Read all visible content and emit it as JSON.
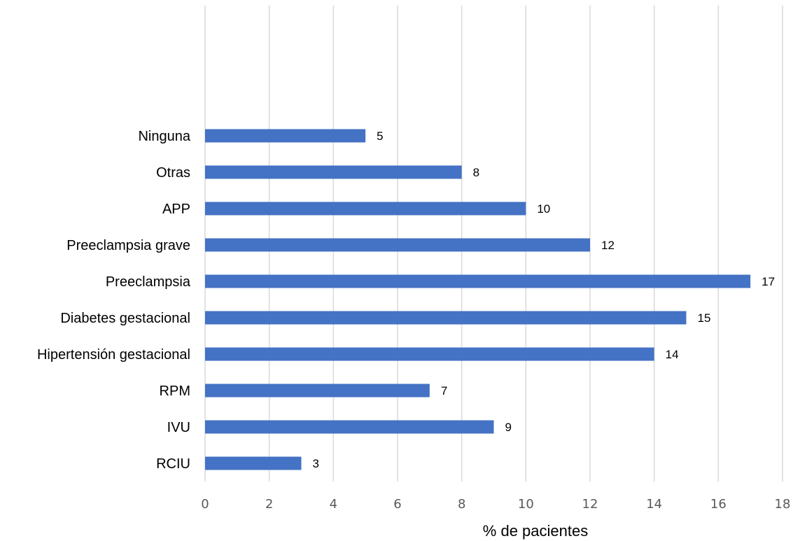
{
  "chart_data": {
    "type": "bar",
    "orientation": "horizontal",
    "categories": [
      "RCIU",
      "IVU",
      "RPM",
      "Hipertensión gestacional",
      "Diabetes gestacional",
      "Preeclampsia",
      "Preeclampsia grave",
      "APP",
      "Otras",
      "Ninguna"
    ],
    "values": [
      3,
      9,
      7,
      14,
      15,
      17,
      12,
      10,
      8,
      5
    ],
    "xlabel": "% de pacientes",
    "ylabel": "",
    "xlim": [
      0,
      18
    ],
    "xticks": [
      0,
      2,
      4,
      6,
      8,
      10,
      12,
      14,
      16,
      18
    ],
    "grid": "vertical",
    "data_labels": true,
    "bar_color": "#4472C4",
    "grid_color": "#D9D9D9"
  }
}
